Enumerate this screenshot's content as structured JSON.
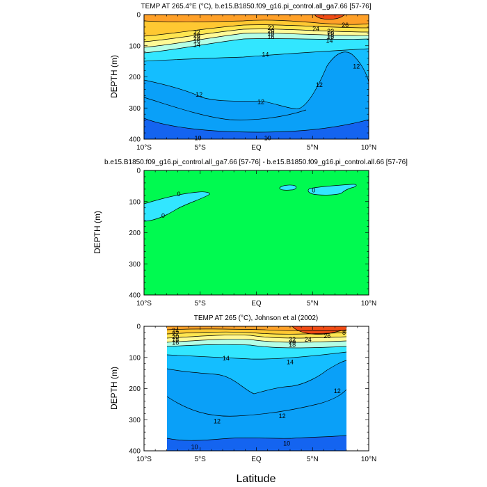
{
  "axis_label_x": "Latitude",
  "chart_data": [
    {
      "type": "contour",
      "title": "TEMP AT 265.4°E (°C), b.e15.B1850.f09_g16.pi_control.all_ga7.66 [57-76]",
      "ylabel": "DEPTH (m)",
      "xlabel": "Latitude",
      "xlim": [
        -10,
        10
      ],
      "ylim": [
        400,
        0
      ],
      "xticks": [
        "10°S",
        "5°S",
        "EQ",
        "5°N",
        "10°N"
      ],
      "yticks": [
        "0",
        "100",
        "200",
        "300",
        "400"
      ],
      "data_extent": [
        -10,
        10
      ],
      "levels": [
        {
          "max": 10,
          "color": "#1464f0"
        },
        {
          "max": 12,
          "color": "#0aa0f8"
        },
        {
          "max": 14,
          "color": "#14beff"
        },
        {
          "max": 16,
          "color": "#32e6ff"
        },
        {
          "max": 18,
          "color": "#b4ffe6"
        },
        {
          "max": 20,
          "color": "#fffa96"
        },
        {
          "max": 22,
          "color": "#ffe650"
        },
        {
          "max": 24,
          "color": "#ffc832"
        },
        {
          "max": 26,
          "color": "#ffa028"
        },
        {
          "max": 99,
          "color": "#f04b14"
        }
      ],
      "contour_labels": [
        {
          "text": "22",
          "lat": -5.3,
          "depth": 57
        },
        {
          "text": "20",
          "lat": -5.3,
          "depth": 67
        },
        {
          "text": "18",
          "lat": -5.3,
          "depth": 76
        },
        {
          "text": "16",
          "lat": -5.3,
          "depth": 85
        },
        {
          "text": "14",
          "lat": -5.3,
          "depth": 97
        },
        {
          "text": "22",
          "lat": 1.3,
          "depth": 42
        },
        {
          "text": "20",
          "lat": 1.3,
          "depth": 52
        },
        {
          "text": "18",
          "lat": 1.3,
          "depth": 62
        },
        {
          "text": "16",
          "lat": 1.3,
          "depth": 72
        },
        {
          "text": "24",
          "lat": 5.3,
          "depth": 46
        },
        {
          "text": "22",
          "lat": 6.6,
          "depth": 54
        },
        {
          "text": "20",
          "lat": 6.6,
          "depth": 60
        },
        {
          "text": "18",
          "lat": 6.6,
          "depth": 66
        },
        {
          "text": "16",
          "lat": 6.6,
          "depth": 72
        },
        {
          "text": "26",
          "lat": 7.9,
          "depth": 34
        },
        {
          "text": "14",
          "lat": 0.8,
          "depth": 128
        },
        {
          "text": "14",
          "lat": 6.5,
          "depth": 84
        },
        {
          "text": "12",
          "lat": 8.9,
          "depth": 166
        },
        {
          "text": "12",
          "lat": 5.6,
          "depth": 226
        },
        {
          "text": "12",
          "lat": -5.1,
          "depth": 257
        },
        {
          "text": "12",
          "lat": 0.4,
          "depth": 280
        },
        {
          "text": "10",
          "lat": -5.2,
          "depth": 397
        },
        {
          "text": "10",
          "lat": 1.0,
          "depth": 397
        }
      ]
    },
    {
      "type": "contour",
      "title": "b.e15.B1850.f09_g16.pi_control.all_ga7.66 [57-76] - b.e15.B1850.f09_g16.pi_control.all.66 [57-76]",
      "ylabel": "DEPTH (m)",
      "xlabel": "Latitude",
      "xlim": [
        -10,
        10
      ],
      "ylim": [
        400,
        0
      ],
      "xticks": [
        "10°S",
        "5°S",
        "EQ",
        "5°N",
        "10°N"
      ],
      "yticks": [
        "0",
        "100",
        "200",
        "300",
        "400"
      ],
      "background_color": "#00fa50",
      "contour_labels": [
        {
          "text": "0",
          "lat": -6.9,
          "depth": 76
        },
        {
          "text": "0",
          "lat": -8.3,
          "depth": 145
        },
        {
          "text": "0",
          "lat": 5.1,
          "depth": 64
        }
      ]
    },
    {
      "type": "contour",
      "title": "TEMP AT 265 (°C), Johnson et al (2002)",
      "ylabel": "DEPTH (m)",
      "xlabel": "Latitude",
      "xlim": [
        -10,
        10
      ],
      "ylim": [
        400,
        0
      ],
      "xticks": [
        "10°S",
        "5°S",
        "EQ",
        "5°N",
        "10°N"
      ],
      "yticks": [
        "0",
        "100",
        "200",
        "300",
        "400"
      ],
      "data_extent": [
        -8,
        8
      ],
      "contour_labels": [
        {
          "text": "24",
          "lat": -7.2,
          "depth": 13
        },
        {
          "text": "22",
          "lat": -7.2,
          "depth": 23
        },
        {
          "text": "20",
          "lat": -7.2,
          "depth": 33
        },
        {
          "text": "18",
          "lat": -7.2,
          "depth": 43
        },
        {
          "text": "16",
          "lat": -7.2,
          "depth": 53
        },
        {
          "text": "22",
          "lat": 3.2,
          "depth": 43
        },
        {
          "text": "20",
          "lat": 3.2,
          "depth": 51
        },
        {
          "text": "18",
          "lat": 3.2,
          "depth": 59
        },
        {
          "text": "24",
          "lat": 4.6,
          "depth": 43
        },
        {
          "text": "26",
          "lat": 6.3,
          "depth": 31
        },
        {
          "text": "8",
          "lat": 7.8,
          "depth": 20
        },
        {
          "text": "14",
          "lat": -2.7,
          "depth": 103
        },
        {
          "text": "14",
          "lat": 3.0,
          "depth": 115
        },
        {
          "text": "12",
          "lat": 7.2,
          "depth": 208
        },
        {
          "text": "12",
          "lat": -3.5,
          "depth": 305
        },
        {
          "text": "12",
          "lat": 2.3,
          "depth": 288
        },
        {
          "text": "10",
          "lat": -5.5,
          "depth": 388
        },
        {
          "text": "10",
          "lat": 2.7,
          "depth": 377
        }
      ]
    }
  ]
}
